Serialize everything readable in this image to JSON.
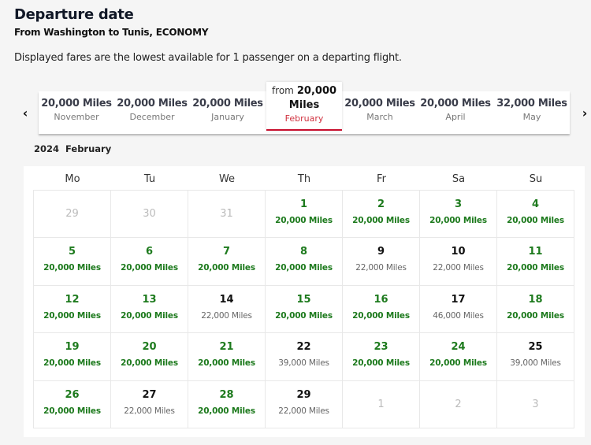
{
  "header": {
    "title": "Departure date",
    "subtitle": "From Washington to Tunis, ECONOMY",
    "info": "Displayed fares are the lowest available for 1 passenger on a departing flight."
  },
  "month_nav": {
    "prev_icon": "‹",
    "next_icon": "›",
    "months": [
      {
        "miles": "20,000 Miles",
        "name": "November"
      },
      {
        "miles": "20,000 Miles",
        "name": "December"
      },
      {
        "miles": "20,000 Miles",
        "name": "January"
      },
      {
        "from": "from",
        "value": "20,000",
        "unit": "Miles",
        "name": "February",
        "selected": true
      },
      {
        "miles": "20,000 Miles",
        "name": "March"
      },
      {
        "miles": "20,000 Miles",
        "name": "April"
      },
      {
        "miles": "32,000 Miles",
        "name": "May"
      }
    ]
  },
  "calendar": {
    "year": "2024",
    "month": "February",
    "weekdays": [
      "Mo",
      "Tu",
      "We",
      "Th",
      "Fr",
      "Sa",
      "Su"
    ],
    "weeks": [
      [
        {
          "day": "29",
          "state": "out"
        },
        {
          "day": "30",
          "state": "out"
        },
        {
          "day": "31",
          "state": "out"
        },
        {
          "day": "1",
          "miles": "20,000 Miles",
          "state": "low"
        },
        {
          "day": "2",
          "miles": "20,000 Miles",
          "state": "low"
        },
        {
          "day": "3",
          "miles": "20,000 Miles",
          "state": "low"
        },
        {
          "day": "4",
          "miles": "20,000 Miles",
          "state": "low"
        }
      ],
      [
        {
          "day": "5",
          "miles": "20,000 Miles",
          "state": "low"
        },
        {
          "day": "6",
          "miles": "20,000 Miles",
          "state": "low"
        },
        {
          "day": "7",
          "miles": "20,000 Miles",
          "state": "low"
        },
        {
          "day": "8",
          "miles": "20,000 Miles",
          "state": "low"
        },
        {
          "day": "9",
          "miles": "22,000 Miles",
          "state": "high"
        },
        {
          "day": "10",
          "miles": "22,000 Miles",
          "state": "high"
        },
        {
          "day": "11",
          "miles": "20,000 Miles",
          "state": "low"
        }
      ],
      [
        {
          "day": "12",
          "miles": "20,000 Miles",
          "state": "low"
        },
        {
          "day": "13",
          "miles": "20,000 Miles",
          "state": "low"
        },
        {
          "day": "14",
          "miles": "22,000 Miles",
          "state": "high"
        },
        {
          "day": "15",
          "miles": "20,000 Miles",
          "state": "low"
        },
        {
          "day": "16",
          "miles": "20,000 Miles",
          "state": "low"
        },
        {
          "day": "17",
          "miles": "46,000 Miles",
          "state": "high"
        },
        {
          "day": "18",
          "miles": "20,000 Miles",
          "state": "low"
        }
      ],
      [
        {
          "day": "19",
          "miles": "20,000 Miles",
          "state": "low"
        },
        {
          "day": "20",
          "miles": "20,000 Miles",
          "state": "low"
        },
        {
          "day": "21",
          "miles": "20,000 Miles",
          "state": "low"
        },
        {
          "day": "22",
          "miles": "39,000 Miles",
          "state": "high"
        },
        {
          "day": "23",
          "miles": "20,000 Miles",
          "state": "low"
        },
        {
          "day": "24",
          "miles": "20,000 Miles",
          "state": "low"
        },
        {
          "day": "25",
          "miles": "39,000 Miles",
          "state": "high"
        }
      ],
      [
        {
          "day": "26",
          "miles": "20,000 Miles",
          "state": "low"
        },
        {
          "day": "27",
          "miles": "22,000 Miles",
          "state": "high"
        },
        {
          "day": "28",
          "miles": "20,000 Miles",
          "state": "low"
        },
        {
          "day": "29",
          "miles": "22,000 Miles",
          "state": "high"
        },
        {
          "day": "1",
          "state": "out"
        },
        {
          "day": "2",
          "state": "out"
        },
        {
          "day": "3",
          "state": "out"
        }
      ]
    ]
  },
  "colors": {
    "low_fare": "#1d7a1d",
    "accent": "#c8102e",
    "selected_month_text": "#d0313f"
  }
}
